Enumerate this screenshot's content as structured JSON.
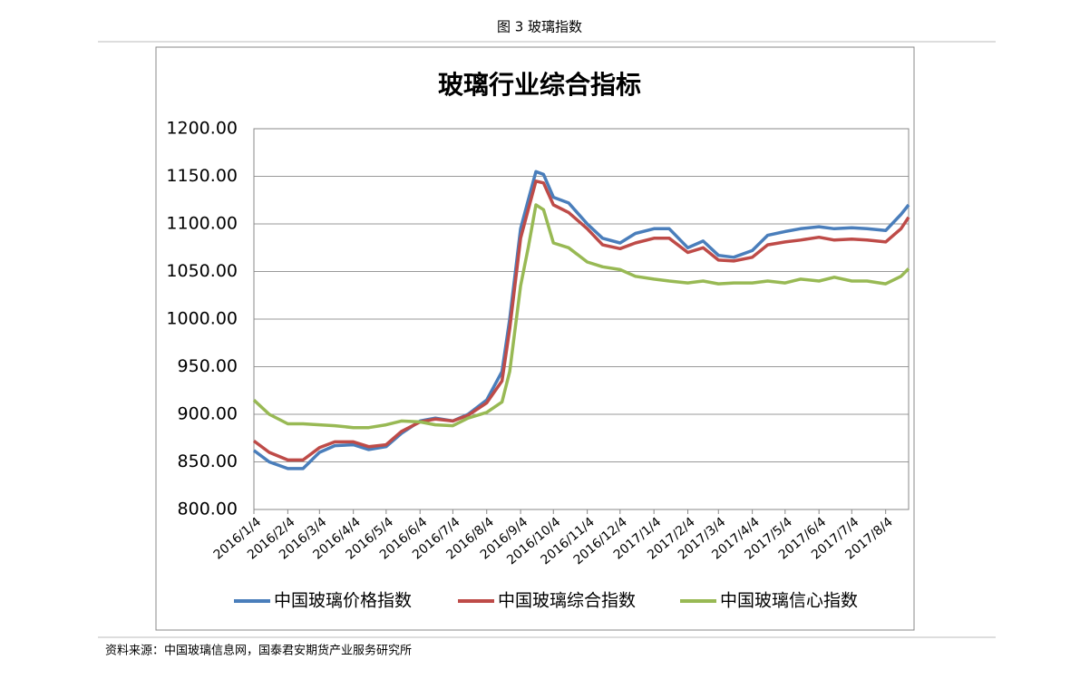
{
  "figure_caption": "图 3 玻璃指数",
  "source": "资料来源：中国玻璃信息网，国泰君安期货产业服务研究所",
  "chart_data": {
    "type": "line",
    "title": "玻璃行业综合指标",
    "x": [
      "2016/1/4",
      "2016/1/18",
      "2016/2/4",
      "2016/2/18",
      "2016/3/4",
      "2016/3/18",
      "2016/4/4",
      "2016/4/18",
      "2016/5/4",
      "2016/5/18",
      "2016/6/4",
      "2016/6/18",
      "2016/7/4",
      "2016/7/18",
      "2016/8/4",
      "2016/8/18",
      "2016/8/25",
      "2016/9/4",
      "2016/9/11",
      "2016/9/18",
      "2016/9/25",
      "2016/10/4",
      "2016/10/18",
      "2016/11/4",
      "2016/11/18",
      "2016/12/4",
      "2016/12/18",
      "2017/1/4",
      "2017/1/18",
      "2017/2/4",
      "2017/2/18",
      "2017/3/4",
      "2017/3/18",
      "2017/4/4",
      "2017/4/18",
      "2017/5/4",
      "2017/5/18",
      "2017/6/4",
      "2017/6/18",
      "2017/7/4",
      "2017/7/18",
      "2017/8/4",
      "2017/8/18",
      "2017/8/25"
    ],
    "series": [
      {
        "name": "中国玻璃价格指数",
        "color": "#4a7ebb",
        "values": [
          862,
          850,
          843,
          843,
          860,
          867,
          868,
          863,
          866,
          880,
          893,
          896,
          893,
          900,
          915,
          945,
          1000,
          1095,
          1125,
          1155,
          1152,
          1128,
          1122,
          1100,
          1085,
          1080,
          1090,
          1095,
          1095,
          1075,
          1082,
          1067,
          1065,
          1072,
          1088,
          1092,
          1095,
          1097,
          1095,
          1096,
          1095,
          1093,
          1110,
          1120
        ]
      },
      {
        "name": "中国玻璃综合指数",
        "color": "#be4b48",
        "values": [
          872,
          860,
          852,
          852,
          865,
          871,
          871,
          866,
          868,
          882,
          892,
          895,
          893,
          899,
          912,
          935,
          990,
          1085,
          1115,
          1145,
          1143,
          1120,
          1112,
          1095,
          1078,
          1074,
          1080,
          1085,
          1085,
          1070,
          1075,
          1062,
          1061,
          1065,
          1078,
          1081,
          1083,
          1086,
          1083,
          1084,
          1083,
          1081,
          1095,
          1107
        ]
      },
      {
        "name": "中国玻璃信心指数",
        "color": "#98b954",
        "values": [
          915,
          900,
          890,
          890,
          889,
          888,
          886,
          886,
          889,
          893,
          892,
          889,
          888,
          896,
          902,
          913,
          945,
          1035,
          1075,
          1120,
          1115,
          1080,
          1075,
          1060,
          1055,
          1052,
          1045,
          1042,
          1040,
          1038,
          1040,
          1037,
          1038,
          1038,
          1040,
          1038,
          1042,
          1040,
          1044,
          1040,
          1040,
          1037,
          1045,
          1053
        ]
      }
    ],
    "xlim": [
      "2016/1/4",
      "2017/8/25"
    ],
    "xticks": [
      "2016/1/4",
      "2016/2/4",
      "2016/3/4",
      "2016/4/4",
      "2016/5/4",
      "2016/6/4",
      "2016/7/4",
      "2016/8/4",
      "2016/9/4",
      "2016/10/4",
      "2016/11/4",
      "2016/12/4",
      "2017/1/4",
      "2017/2/4",
      "2017/3/4",
      "2017/4/4",
      "2017/5/4",
      "2017/6/4",
      "2017/7/4",
      "2017/8/4"
    ],
    "ylim": [
      800,
      1200
    ],
    "yticks": [
      {
        "value": 800,
        "label": "800.00"
      },
      {
        "value": 850,
        "label": "850.00"
      },
      {
        "value": 900,
        "label": "900.00"
      },
      {
        "value": 950,
        "label": "950.00"
      },
      {
        "value": 1000,
        "label": "1000.00"
      },
      {
        "value": 1050,
        "label": "1050.00"
      },
      {
        "value": 1100,
        "label": "1100.00"
      },
      {
        "value": 1150,
        "label": "1150.00"
      },
      {
        "value": 1200,
        "label": "1200.00"
      }
    ],
    "grid": true,
    "legend": "bottom"
  }
}
